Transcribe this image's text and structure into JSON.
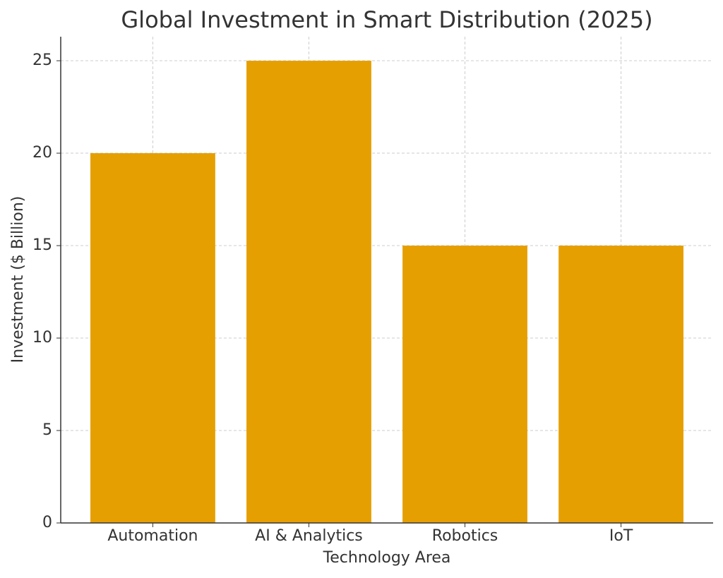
{
  "chart_data": {
    "type": "bar",
    "title": "Global Investment in Smart Distribution (2025)",
    "x_label": "Technology Area",
    "y_label": "Investment ($ Billion)",
    "categories": [
      "Automation",
      "AI & Analytics",
      "Robotics",
      "IoT"
    ],
    "values": [
      20,
      25,
      15,
      15
    ],
    "color": "#e69f00",
    "ylim": [
      0,
      26.3
    ],
    "yticks": [
      0,
      5,
      10,
      15,
      20,
      25
    ],
    "grid": true
  }
}
